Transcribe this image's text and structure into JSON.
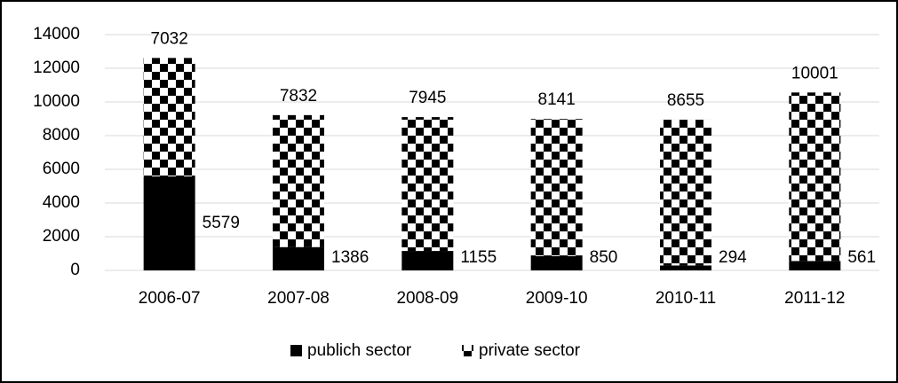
{
  "chart_data": {
    "type": "stacked_bar",
    "categories": [
      "2006-07",
      "2007-08",
      "2008-09",
      "2009-10",
      "2010-11",
      "2011-12"
    ],
    "series": [
      {
        "name": "publich sector",
        "color": "#000000",
        "values": [
          5579,
          1386,
          1155,
          850,
          294,
          561
        ]
      },
      {
        "name": "private sector",
        "color": "#000000",
        "pattern": "checkerboard",
        "values": [
          7032,
          7832,
          7945,
          8141,
          8655,
          10001
        ]
      }
    ],
    "ylim": [
      0,
      14000
    ],
    "yticks": [
      0,
      2000,
      4000,
      6000,
      8000,
      10000,
      12000,
      14000
    ],
    "grid": true,
    "legend": "bottom"
  }
}
